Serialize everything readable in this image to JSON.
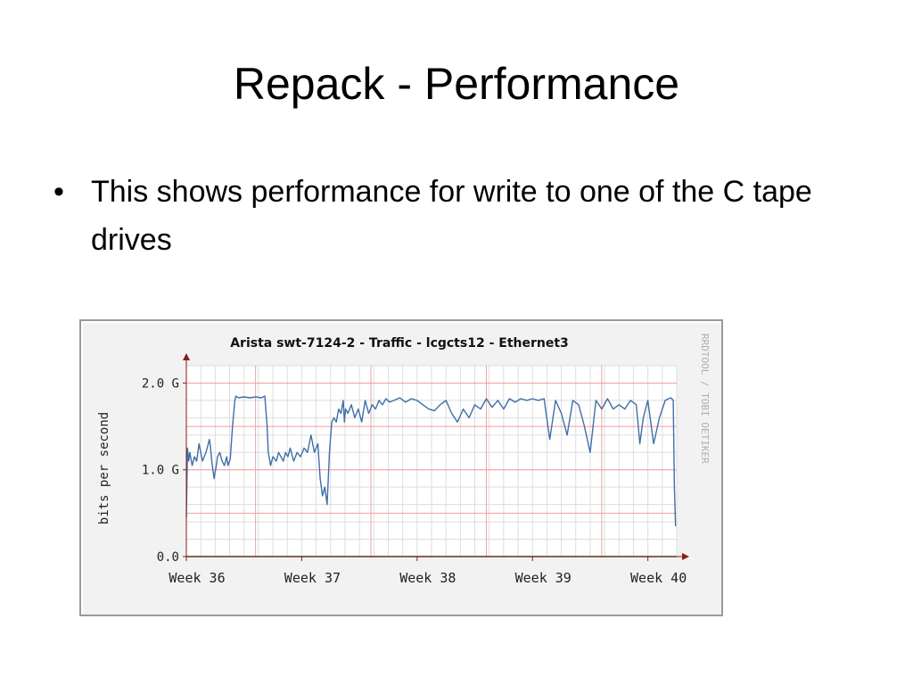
{
  "slide": {
    "title": "Repack - Performance",
    "bullets": [
      "This shows performance for write to one of the C tape drives"
    ]
  },
  "colors": {
    "chart_background": "#f2f2f2",
    "plot_background": "#ffffff",
    "line": "#3f6fa8",
    "major_grid": "#f0a0a0",
    "minor_grid": "#dddddd",
    "axis": "#8b1a1a",
    "baseline": "#006400",
    "watermark": "#b0b0b0"
  },
  "chart_data": {
    "type": "line",
    "title": "Arista swt-7124-2 - Traffic - lcgcts12 - Ethernet3",
    "ylabel": "bits per second",
    "xlabel": "",
    "watermark": "RRDTOOL / TOBI OETIKER",
    "ylim": [
      0,
      2.2
    ],
    "y_ticks": [
      {
        "value": 0,
        "label": "0.0"
      },
      {
        "value": 1,
        "label": "1.0 G"
      },
      {
        "value": 2,
        "label": "2.0 G"
      }
    ],
    "xlim": [
      0,
      4.25
    ],
    "x_ticks": [
      {
        "value": 0,
        "label": "Week 36"
      },
      {
        "value": 1,
        "label": "Week 37"
      },
      {
        "value": 2,
        "label": "Week 38"
      },
      {
        "value": 3,
        "label": "Week 39"
      },
      {
        "value": 4,
        "label": "Week 40"
      }
    ],
    "grid": true,
    "series": [
      {
        "unit": "Gbps",
        "x": [
          0.0,
          0.01,
          0.02,
          0.03,
          0.05,
          0.07,
          0.09,
          0.11,
          0.14,
          0.17,
          0.2,
          0.21,
          0.22,
          0.24,
          0.26,
          0.27,
          0.29,
          0.31,
          0.33,
          0.35,
          0.36,
          0.38,
          0.4,
          0.42,
          0.43,
          0.45,
          0.5,
          0.55,
          0.6,
          0.65,
          0.68,
          0.7,
          0.71,
          0.73,
          0.75,
          0.78,
          0.8,
          0.82,
          0.84,
          0.86,
          0.88,
          0.9,
          0.93,
          0.96,
          0.99,
          1.02,
          1.05,
          1.08,
          1.11,
          1.14,
          1.16,
          1.18,
          1.2,
          1.22,
          1.24,
          1.26,
          1.28,
          1.3,
          1.32,
          1.34,
          1.36,
          1.37,
          1.38,
          1.4,
          1.43,
          1.46,
          1.49,
          1.52,
          1.55,
          1.58,
          1.61,
          1.64,
          1.67,
          1.7,
          1.73,
          1.76,
          1.8,
          1.85,
          1.9,
          1.95,
          2.0,
          2.05,
          2.1,
          2.15,
          2.2,
          2.25,
          2.3,
          2.35,
          2.4,
          2.45,
          2.5,
          2.55,
          2.6,
          2.65,
          2.7,
          2.75,
          2.8,
          2.85,
          2.9,
          2.95,
          3.0,
          3.05,
          3.1,
          3.15,
          3.2,
          3.25,
          3.3,
          3.35,
          3.4,
          3.45,
          3.5,
          3.55,
          3.6,
          3.65,
          3.7,
          3.75,
          3.8,
          3.85,
          3.9,
          3.93,
          3.96,
          4.0,
          4.05,
          4.1,
          4.15,
          4.18,
          4.2,
          4.22,
          4.23,
          4.24
        ],
        "y": [
          0.45,
          1.25,
          1.1,
          1.2,
          1.05,
          1.15,
          1.1,
          1.3,
          1.1,
          1.2,
          1.35,
          1.25,
          1.1,
          0.9,
          1.05,
          1.15,
          1.2,
          1.1,
          1.05,
          1.15,
          1.05,
          1.12,
          1.5,
          1.8,
          1.85,
          1.83,
          1.84,
          1.83,
          1.84,
          1.83,
          1.85,
          1.5,
          1.2,
          1.05,
          1.15,
          1.1,
          1.2,
          1.15,
          1.1,
          1.2,
          1.15,
          1.25,
          1.1,
          1.2,
          1.15,
          1.25,
          1.2,
          1.4,
          1.2,
          1.3,
          0.9,
          0.7,
          0.8,
          0.6,
          1.2,
          1.55,
          1.6,
          1.55,
          1.7,
          1.65,
          1.8,
          1.55,
          1.7,
          1.65,
          1.75,
          1.6,
          1.7,
          1.55,
          1.8,
          1.65,
          1.75,
          1.7,
          1.8,
          1.75,
          1.82,
          1.78,
          1.8,
          1.83,
          1.78,
          1.82,
          1.8,
          1.75,
          1.7,
          1.68,
          1.75,
          1.8,
          1.65,
          1.55,
          1.7,
          1.6,
          1.75,
          1.7,
          1.82,
          1.72,
          1.8,
          1.7,
          1.82,
          1.78,
          1.82,
          1.8,
          1.82,
          1.8,
          1.82,
          1.35,
          1.8,
          1.65,
          1.4,
          1.8,
          1.75,
          1.5,
          1.2,
          1.8,
          1.7,
          1.82,
          1.7,
          1.75,
          1.7,
          1.8,
          1.75,
          1.3,
          1.6,
          1.8,
          1.3,
          1.6,
          1.8,
          1.82,
          1.83,
          1.8,
          0.8,
          0.35
        ]
      }
    ]
  }
}
